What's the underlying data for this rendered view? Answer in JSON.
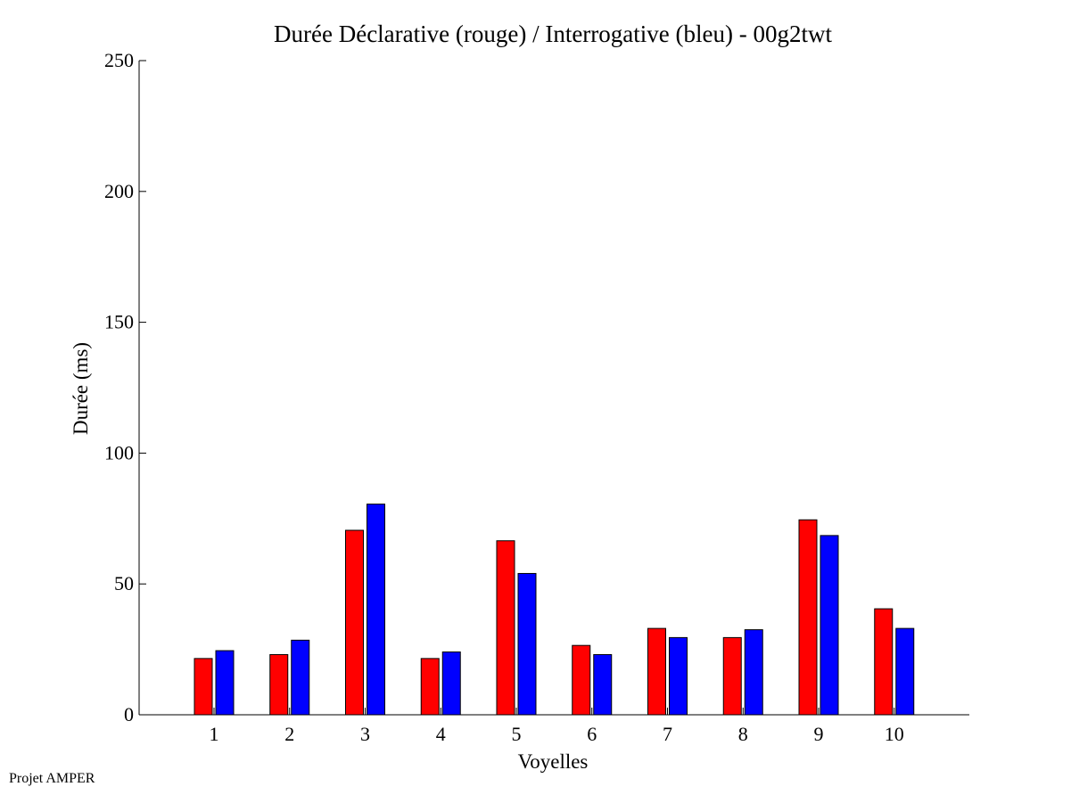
{
  "footer": {
    "text": "Projet AMPER"
  },
  "colors": {
    "declarative": "#ff0000",
    "interrogative": "#0000ff",
    "axis": "#000000",
    "background": "#ffffff"
  },
  "chart_data": {
    "type": "bar",
    "title": "Durée Déclarative (rouge) / Interrogative (bleu) - 00g2twt",
    "xlabel": "Voyelles",
    "ylabel": "Durée (ms)",
    "ylim": [
      0,
      250
    ],
    "yticks": [
      0,
      50,
      100,
      150,
      200,
      250
    ],
    "categories": [
      "1",
      "2",
      "3",
      "4",
      "5",
      "6",
      "7",
      "8",
      "9",
      "10"
    ],
    "grid": false,
    "legend": "none",
    "series": [
      {
        "color": "#ff0000",
        "values": [
          21.5,
          23,
          70.5,
          21.5,
          66.5,
          26.5,
          33,
          29.5,
          74.5,
          40.5
        ]
      },
      {
        "color": "#0000ff",
        "values": [
          24.5,
          28.5,
          80.5,
          24,
          54,
          23,
          29.5,
          32.5,
          68.5,
          33
        ]
      }
    ]
  }
}
